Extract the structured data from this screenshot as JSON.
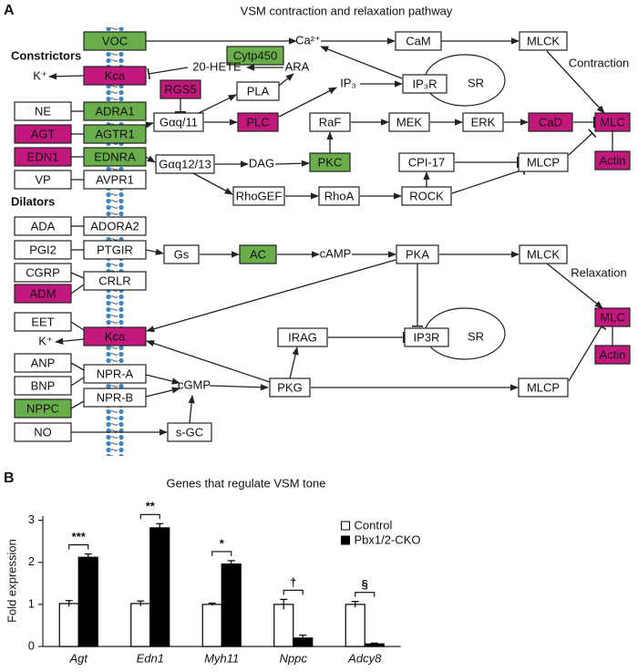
{
  "panel_a": {
    "label": "A",
    "title": "VSM contraction and relaxation pathway",
    "group_labels": [
      "Constrictors",
      "Dilators"
    ],
    "process_labels": [
      "Contraction",
      "Relaxation"
    ],
    "compartments": [
      "SR",
      "SR"
    ],
    "boxes": [
      {
        "label": "VOC",
        "fill": "#6aae4c"
      },
      {
        "label": "Kca",
        "fill": "#c2187e"
      },
      {
        "label": "Cytp450",
        "fill": "#6aae4c"
      },
      {
        "label": "CaM",
        "fill": "#ffffff"
      },
      {
        "label": "MLCK",
        "fill": "#ffffff"
      },
      {
        "label": "IP₃R",
        "fill": "#ffffff"
      },
      {
        "label": "RGS5",
        "fill": "#c2187e"
      },
      {
        "label": "PLA",
        "fill": "#ffffff"
      },
      {
        "label": "Gαq/11",
        "fill": "#ffffff"
      },
      {
        "label": "PLC",
        "fill": "#c2187e"
      },
      {
        "label": "RaF",
        "fill": "#ffffff"
      },
      {
        "label": "MEK",
        "fill": "#ffffff"
      },
      {
        "label": "ERK",
        "fill": "#ffffff"
      },
      {
        "label": "CaD",
        "fill": "#c2187e"
      },
      {
        "label": "MLC",
        "fill": "#c2187e"
      },
      {
        "label": "Actin",
        "fill": "#c2187e"
      },
      {
        "label": "NE",
        "fill": "#ffffff"
      },
      {
        "label": "ADRA1",
        "fill": "#6aae4c"
      },
      {
        "label": "AGT",
        "fill": "#c2187e"
      },
      {
        "label": "AGTR1",
        "fill": "#6aae4c"
      },
      {
        "label": "EDN1",
        "fill": "#c2187e"
      },
      {
        "label": "EDNRA",
        "fill": "#6aae4c"
      },
      {
        "label": "VP",
        "fill": "#ffffff"
      },
      {
        "label": "AVPR1",
        "fill": "#ffffff"
      },
      {
        "label": "Gαq12/13",
        "fill": "#ffffff"
      },
      {
        "label": "PKC",
        "fill": "#6aae4c"
      },
      {
        "label": "CPI-17",
        "fill": "#ffffff"
      },
      {
        "label": "MLCP",
        "fill": "#ffffff"
      },
      {
        "label": "RhoGEF",
        "fill": "#ffffff"
      },
      {
        "label": "RhoA",
        "fill": "#ffffff"
      },
      {
        "label": "ROCK",
        "fill": "#ffffff"
      },
      {
        "label": "ADA",
        "fill": "#ffffff"
      },
      {
        "label": "ADORA2",
        "fill": "#ffffff"
      },
      {
        "label": "PGI2",
        "fill": "#ffffff"
      },
      {
        "label": "PTGIR",
        "fill": "#ffffff"
      },
      {
        "label": "CGRP",
        "fill": "#ffffff"
      },
      {
        "label": "CRLR",
        "fill": "#ffffff"
      },
      {
        "label": "ADM",
        "fill": "#c2187e"
      },
      {
        "label": "Gs",
        "fill": "#ffffff"
      },
      {
        "label": "AC",
        "fill": "#6aae4c"
      },
      {
        "label": "PKA",
        "fill": "#ffffff"
      },
      {
        "label": "MLCK",
        "fill": "#ffffff"
      },
      {
        "label": "MLC",
        "fill": "#c2187e"
      },
      {
        "label": "Actin",
        "fill": "#c2187e"
      },
      {
        "label": "EET",
        "fill": "#ffffff"
      },
      {
        "label": "Kca",
        "fill": "#c2187e"
      },
      {
        "label": "IRAG",
        "fill": "#ffffff"
      },
      {
        "label": "IP3R",
        "fill": "#ffffff"
      },
      {
        "label": "ANP",
        "fill": "#ffffff"
      },
      {
        "label": "NPR-A",
        "fill": "#ffffff"
      },
      {
        "label": "BNP",
        "fill": "#ffffff"
      },
      {
        "label": "NPR-B",
        "fill": "#ffffff"
      },
      {
        "label": "NPPC",
        "fill": "#6aae4c"
      },
      {
        "label": "PKG",
        "fill": "#ffffff"
      },
      {
        "label": "MLCP",
        "fill": "#ffffff"
      },
      {
        "label": "NO",
        "fill": "#ffffff"
      },
      {
        "label": "s-GC",
        "fill": "#ffffff"
      }
    ],
    "texts": [
      "Ca²⁺",
      "20-HETE",
      "ARA",
      "K⁺",
      "IP₃",
      "DAG",
      "cAMP",
      "K⁺",
      "cGMP"
    ]
  },
  "panel_b": {
    "label": "B"
  },
  "chart_data": {
    "type": "bar",
    "title": "Genes that regulate VSM tone",
    "y_label": "Fold expression",
    "categories": [
      "Agt",
      "Edn1",
      "Myh11",
      "Nppc",
      "Adcy8"
    ],
    "series": [
      {
        "name": "Control",
        "color": "#ffffff",
        "values": [
          1.02,
          1.02,
          1.0,
          1.0,
          1.0
        ],
        "errors": [
          0.07,
          0.06,
          0.03,
          0.12,
          0.07
        ]
      },
      {
        "name": "Pbx1/2-CKO",
        "color": "#000000",
        "values": [
          2.12,
          2.82,
          1.96,
          0.2,
          0.06
        ],
        "errors": [
          0.08,
          0.1,
          0.08,
          0.07,
          0.02
        ]
      }
    ],
    "annotations": [
      "***",
      "**",
      "*",
      "†",
      "§"
    ],
    "ylim": [
      0,
      3.1
    ],
    "yticks": [
      0,
      1,
      2,
      3
    ],
    "legend": "top-right"
  }
}
